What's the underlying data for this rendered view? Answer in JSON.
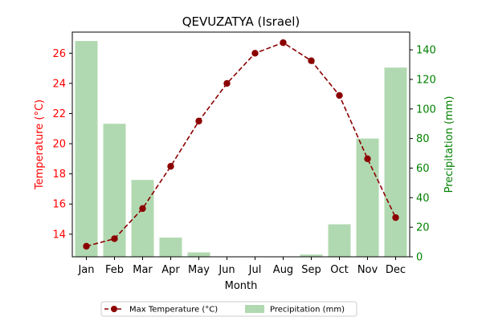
{
  "chart_data": {
    "type": "bar+line",
    "title": "QEVUZATYA (Israel)",
    "xlabel": "Month",
    "ylabel_left": "Temperature (°C)",
    "ylabel_right": "Precipitation (mm)",
    "categories": [
      "Jan",
      "Feb",
      "Mar",
      "Apr",
      "May",
      "Jun",
      "Jul",
      "Aug",
      "Sep",
      "Oct",
      "Nov",
      "Dec"
    ],
    "series": [
      {
        "name": "Max Temperature (°C)",
        "kind": "line",
        "axis": "left",
        "color": "#8b0000",
        "style": "dashed with circle markers",
        "values": [
          13.2,
          13.7,
          15.7,
          18.5,
          21.5,
          24.0,
          26.0,
          26.7,
          25.5,
          23.2,
          19.0,
          15.1
        ]
      },
      {
        "name": "Precipitation (mm)",
        "kind": "bar",
        "axis": "right",
        "color": "#b1d9b1",
        "values": [
          146,
          90,
          52,
          13,
          3,
          0,
          0,
          0,
          1.5,
          22,
          80,
          128
        ]
      }
    ],
    "ylim_left": [
      12.5,
      27.4
    ],
    "ylim_right": [
      0,
      152
    ],
    "yticks_left": [
      "14",
      "16",
      "18",
      "20",
      "22",
      "24",
      "26"
    ],
    "yticks_right": [
      "0",
      "20",
      "40",
      "60",
      "80",
      "100",
      "120",
      "140"
    ],
    "left_axis_color": "#ff0000",
    "right_axis_color": "#008000",
    "grid": false,
    "legend_position": "bottom-center"
  }
}
